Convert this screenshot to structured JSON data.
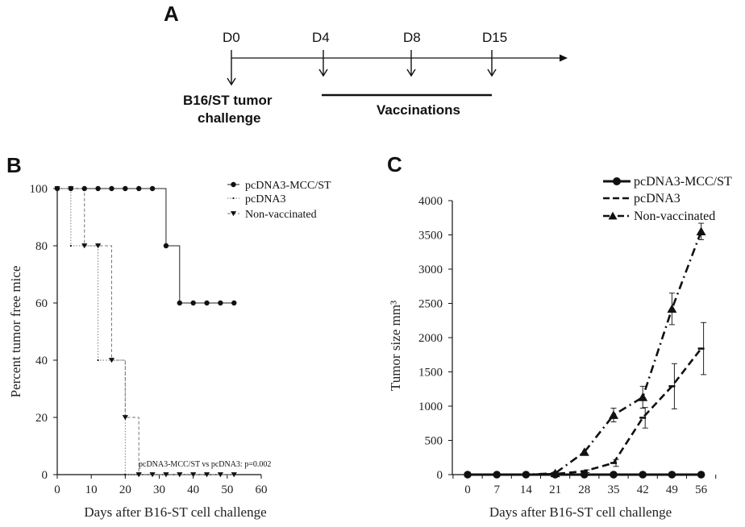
{
  "panel_a": {
    "letter": "A",
    "days": [
      "D0",
      "D4",
      "D8",
      "D15"
    ],
    "challenge_line1": "B16/ST tumor",
    "challenge_line2": "challenge",
    "vaccinations": "Vaccinations"
  },
  "chart_data": [
    {
      "panel": "B",
      "type": "line",
      "step": true,
      "xlabel": "Days after B16-ST cell challenge",
      "ylabel": "Percent tumor free mice",
      "xlim": [
        0,
        60
      ],
      "ylim": [
        0,
        100
      ],
      "xticks": [
        0,
        10,
        20,
        30,
        40,
        50,
        60
      ],
      "yticks": [
        0,
        20,
        40,
        60,
        80,
        100
      ],
      "legend_position": "top-right",
      "annotation": "pcDNA3-MCC/ST vs pcDNA3: p=0.002",
      "series": [
        {
          "name": "pcDNA3-MCC/ST",
          "marker": "circle",
          "line": "solid",
          "x": [
            0,
            4,
            8,
            12,
            16,
            20,
            24,
            28,
            32,
            36,
            40,
            44,
            48,
            52
          ],
          "y": [
            100,
            100,
            100,
            100,
            100,
            100,
            100,
            100,
            80,
            60,
            60,
            60,
            60,
            60
          ]
        },
        {
          "name": "pcDNA3",
          "marker": "dot",
          "line": "dotted",
          "x": [
            0,
            4,
            8,
            12,
            16,
            20,
            24,
            28,
            32,
            36,
            40,
            44,
            48,
            52
          ],
          "y": [
            100,
            80,
            80,
            40,
            40,
            0,
            0,
            0,
            0,
            0,
            0,
            0,
            0,
            0
          ]
        },
        {
          "name": "Non-vaccinated",
          "marker": "triangle-down",
          "line": "dashed",
          "x": [
            0,
            4,
            8,
            12,
            16,
            20,
            24,
            28,
            32,
            36,
            40,
            44,
            48,
            52
          ],
          "y": [
            100,
            100,
            80,
            80,
            40,
            20,
            0,
            0,
            0,
            0,
            0,
            0,
            0,
            0
          ]
        }
      ]
    },
    {
      "panel": "C",
      "type": "line",
      "xlabel": "Days after B16-ST cell challenge",
      "ylabel": "Tumor size mm³",
      "categories": [
        "0",
        "7",
        "14",
        "21",
        "28",
        "35",
        "42",
        "49",
        "56"
      ],
      "ylim": [
        0,
        4000
      ],
      "yticks": [
        0,
        500,
        1000,
        1500,
        2000,
        2500,
        3000,
        3500,
        4000
      ],
      "legend_position": "top-right",
      "series": [
        {
          "name": "pcDNA3-MCC/ST",
          "marker": "circle",
          "line": "solid",
          "values": [
            0,
            0,
            0,
            0,
            0,
            0,
            0,
            0,
            0
          ],
          "errors": [
            0,
            0,
            0,
            0,
            0,
            0,
            0,
            0,
            0
          ]
        },
        {
          "name": "pcDNA3",
          "marker": "dash",
          "line": "dashed",
          "values": [
            0,
            0,
            0,
            10,
            50,
            170,
            830,
            1290,
            1840
          ],
          "errors": [
            0,
            0,
            0,
            0,
            20,
            50,
            150,
            330,
            380
          ]
        },
        {
          "name": "Non-vaccinated",
          "marker": "triangle",
          "line": "dash-dot",
          "values": [
            0,
            0,
            0,
            20,
            330,
            870,
            1130,
            2420,
            3550
          ],
          "errors": [
            0,
            0,
            0,
            0,
            0,
            100,
            160,
            230,
            120
          ]
        }
      ]
    }
  ]
}
